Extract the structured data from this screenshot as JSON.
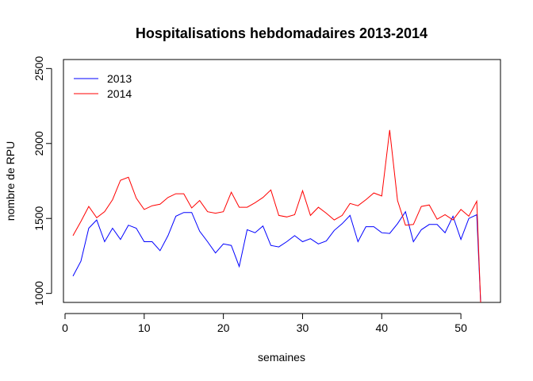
{
  "chart_data": {
    "type": "line",
    "title": "Hospitalisations hebdomadaires 2013-2014",
    "xlabel": "semaines",
    "ylabel": "nombre de RPU",
    "xlim": [
      -0.2,
      55
    ],
    "ylim": [
      940,
      2560
    ],
    "xticks": [
      0,
      10,
      20,
      30,
      40,
      50
    ],
    "yticks": [
      1000,
      1500,
      2000,
      2500
    ],
    "grid": false,
    "legend_position": "top-left",
    "series": [
      {
        "name": "2013",
        "color": "#0000ff",
        "x": [
          1,
          2,
          3,
          4,
          5,
          6,
          7,
          8,
          9,
          10,
          11,
          12,
          13,
          14,
          15,
          16,
          17,
          18,
          19,
          20,
          21,
          22,
          23,
          24,
          25,
          26,
          27,
          28,
          29,
          30,
          31,
          32,
          33,
          34,
          35,
          36,
          37,
          38,
          39,
          40,
          41,
          42,
          43,
          44,
          45,
          46,
          47,
          48,
          49,
          50,
          51,
          52,
          52.5
        ],
        "y": [
          1115,
          1215,
          1435,
          1490,
          1345,
          1435,
          1360,
          1455,
          1435,
          1345,
          1345,
          1285,
          1385,
          1515,
          1540,
          1540,
          1415,
          1345,
          1270,
          1330,
          1320,
          1180,
          1425,
          1405,
          1450,
          1320,
          1310,
          1345,
          1385,
          1345,
          1365,
          1330,
          1350,
          1420,
          1465,
          1520,
          1345,
          1445,
          1445,
          1405,
          1400,
          1465,
          1545,
          1345,
          1425,
          1460,
          1460,
          1405,
          1515,
          1360,
          1500,
          1525,
          940
        ]
      },
      {
        "name": "2014",
        "color": "#ff0000",
        "x": [
          1,
          2,
          3,
          4,
          5,
          6,
          7,
          8,
          9,
          10,
          11,
          12,
          13,
          14,
          15,
          16,
          17,
          18,
          19,
          20,
          21,
          22,
          23,
          24,
          25,
          26,
          27,
          28,
          29,
          30,
          31,
          32,
          33,
          34,
          35,
          36,
          37,
          38,
          39,
          40,
          41,
          42,
          43,
          44,
          45,
          46,
          47,
          48,
          49,
          50,
          51,
          52,
          52.5
        ],
        "y": [
          1385,
          1480,
          1580,
          1505,
          1545,
          1625,
          1755,
          1775,
          1635,
          1560,
          1585,
          1595,
          1640,
          1665,
          1665,
          1570,
          1620,
          1545,
          1535,
          1545,
          1675,
          1575,
          1575,
          1605,
          1640,
          1690,
          1520,
          1510,
          1525,
          1685,
          1520,
          1575,
          1535,
          1490,
          1520,
          1600,
          1585,
          1625,
          1670,
          1650,
          2090,
          1620,
          1455,
          1460,
          1580,
          1590,
          1495,
          1525,
          1490,
          1560,
          1515,
          1615,
          940
        ]
      }
    ]
  }
}
